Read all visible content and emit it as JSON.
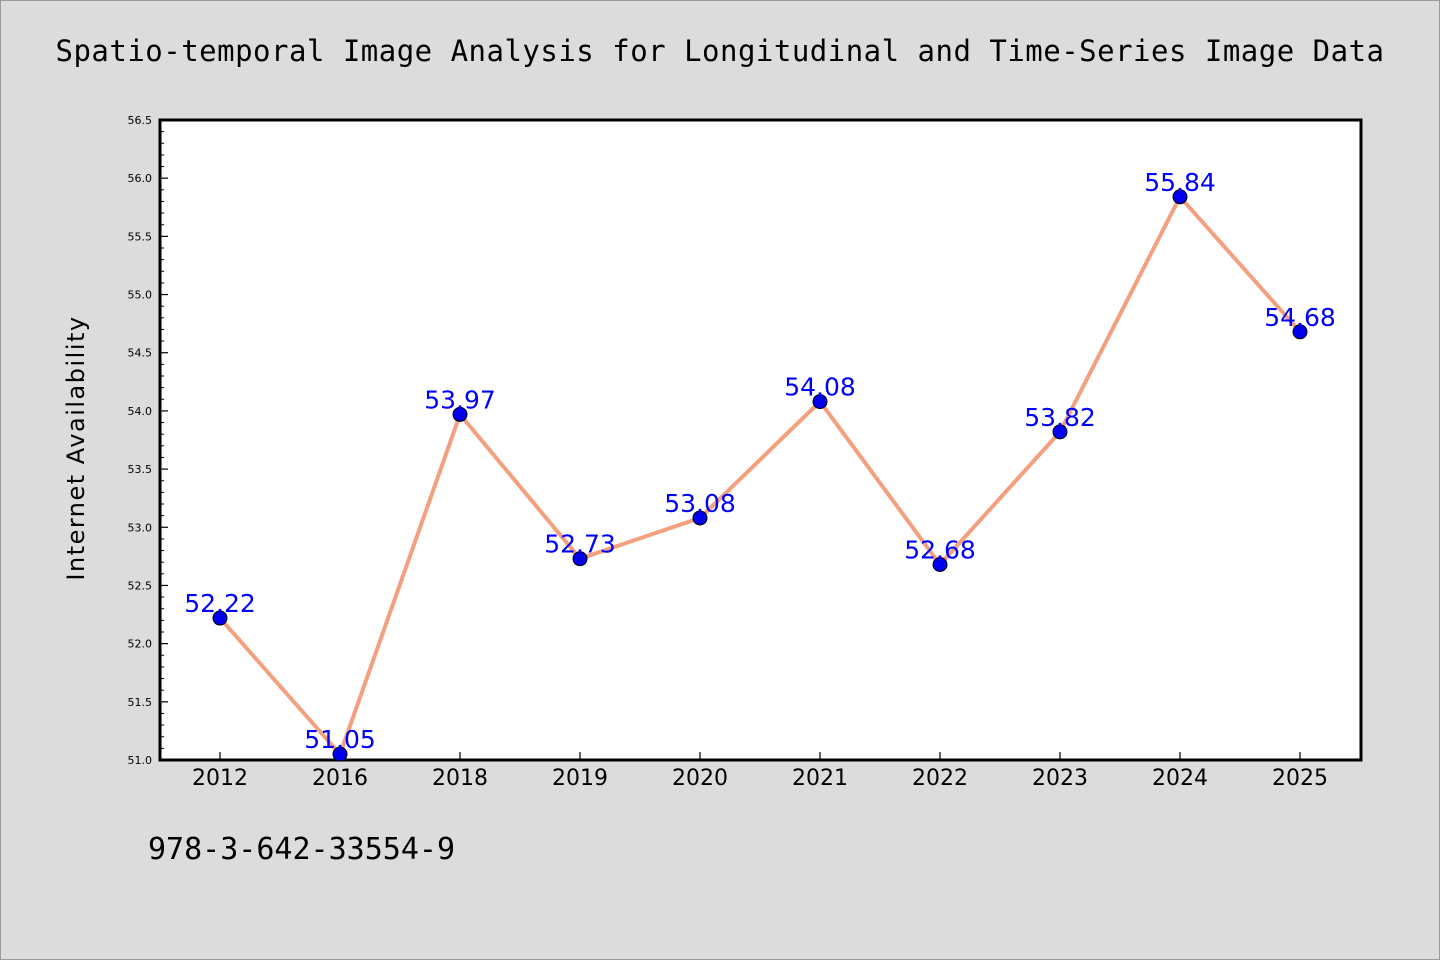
{
  "chart_data": {
    "type": "line",
    "title": "Spatio-temporal Image Analysis for Longitudinal and Time-Series Image Data",
    "xlabel": "",
    "ylabel": "Internet Availability",
    "categories": [
      "2012",
      "2016",
      "2018",
      "2019",
      "2020",
      "2021",
      "2022",
      "2023",
      "2024",
      "2025"
    ],
    "series": [
      {
        "values": [
          52.22,
          51.05,
          53.97,
          52.73,
          53.08,
          54.08,
          52.68,
          53.82,
          55.84,
          54.68
        ],
        "data_labels": [
          "52.22",
          "51.05",
          "53.97",
          "52.73",
          "53.08",
          "54.08",
          "52.68",
          "53.82",
          "55.84",
          "54.68"
        ]
      }
    ],
    "ylim": [
      51.0,
      56.5
    ],
    "yticks": [
      "51.0",
      "51.5",
      "52.0",
      "52.5",
      "53.0",
      "53.5",
      "54.0",
      "54.5",
      "55.0",
      "55.5",
      "56.0",
      "56.5"
    ],
    "grid": false,
    "legend": "none",
    "colors": {
      "line": "#f4a07e",
      "marker": "#0000ee",
      "label": "#0000ff",
      "background": "#dcdcdc",
      "plot_area": "#ffffff"
    }
  },
  "footer": {
    "identifier": "978-3-642-33554-9"
  }
}
